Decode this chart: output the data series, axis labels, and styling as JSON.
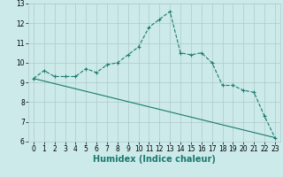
{
  "title": "",
  "xlabel": "Humidex (Indice chaleur)",
  "bg_color": "#cceaea",
  "line_color": "#1a7a6e",
  "grid_color": "#b0c8c8",
  "xlim": [
    -0.5,
    23.5
  ],
  "ylim": [
    6,
    13
  ],
  "xticks": [
    0,
    1,
    2,
    3,
    4,
    5,
    6,
    7,
    8,
    9,
    10,
    11,
    12,
    13,
    14,
    15,
    16,
    17,
    18,
    19,
    20,
    21,
    22,
    23
  ],
  "yticks": [
    6,
    7,
    8,
    9,
    10,
    11,
    12,
    13
  ],
  "series1_x": [
    0,
    1,
    2,
    3,
    4,
    5,
    6,
    7,
    8,
    9,
    10,
    11,
    12,
    13,
    14,
    15,
    16,
    17,
    18,
    19,
    20,
    21,
    22,
    23
  ],
  "series1_y": [
    9.2,
    9.6,
    9.3,
    9.3,
    9.3,
    9.7,
    9.5,
    9.9,
    10.0,
    10.4,
    10.8,
    11.8,
    12.2,
    12.6,
    10.5,
    10.4,
    10.5,
    10.0,
    8.85,
    8.85,
    8.6,
    8.5,
    7.3,
    6.2
  ],
  "series2_x": [
    0,
    23
  ],
  "series2_y": [
    9.2,
    6.2
  ],
  "tick_fontsize": 5.5,
  "xlabel_fontsize": 7,
  "xlabel_bold": true
}
